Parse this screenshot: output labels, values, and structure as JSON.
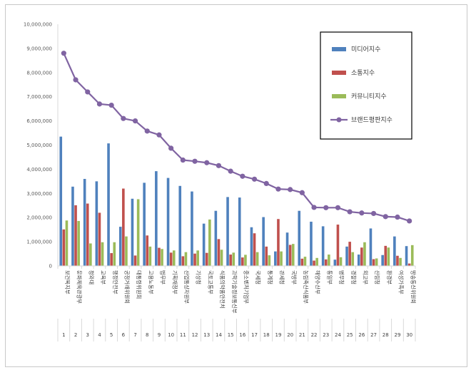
{
  "chart_data": {
    "type": "bar",
    "title": "",
    "xlabel": "",
    "ylabel": "",
    "ylim": [
      0,
      10000000
    ],
    "yticks": [
      "0",
      "1,000,000",
      "2,000,000",
      "3,000,000",
      "4,000,000",
      "5,000,000",
      "6,000,000",
      "7,000,000",
      "8,000,000",
      "9,000,000",
      "10,000,000"
    ],
    "ytick_values": [
      0,
      1000000,
      2000000,
      3000000,
      4000000,
      5000000,
      6000000,
      7000000,
      8000000,
      9000000,
      10000000
    ],
    "categories": [
      "보건복지부",
      "문화체육관광부",
      "청와대",
      "교육부",
      "행정안전부",
      "공정거래위원회",
      "대통령위원회",
      "고용노동부",
      "법무부",
      "기획재정부",
      "산업통상자원부",
      "기상청",
      "국토교통부",
      "식품의약품안전처",
      "과학기술정보통신부",
      "중소벤처기업부",
      "국세청",
      "통계청",
      "관세청",
      "국방부",
      "농림축산식품부",
      "해양수산부",
      "통일부",
      "병무청",
      "경찰청",
      "외교부",
      "산림청",
      "환경부",
      "여성가족부",
      "방송통신위원회"
    ],
    "ranks": [
      "1",
      "2",
      "3",
      "4",
      "5",
      "6",
      "7",
      "8",
      "9",
      "10",
      "11",
      "12",
      "13",
      "14",
      "15",
      "16",
      "17",
      "18",
      "19",
      "20",
      "21",
      "22",
      "23",
      "24",
      "25",
      "26",
      "27",
      "28",
      "29",
      "30"
    ],
    "series": [
      {
        "name": "미디어지수",
        "color": "#4f81bd",
        "kind": "bar",
        "values": [
          5350000,
          3280000,
          3600000,
          3500000,
          5070000,
          1620000,
          2780000,
          3440000,
          3920000,
          3640000,
          3310000,
          3080000,
          1750000,
          2280000,
          2850000,
          2830000,
          1600000,
          2020000,
          600000,
          1380000,
          2280000,
          1830000,
          1640000,
          260000,
          800000,
          470000,
          1550000,
          450000,
          1220000,
          820000
        ]
      },
      {
        "name": "소통지수",
        "color": "#c0504d",
        "kind": "bar",
        "values": [
          1510000,
          2510000,
          2580000,
          2200000,
          530000,
          3200000,
          430000,
          1260000,
          750000,
          550000,
          400000,
          510000,
          540000,
          1110000,
          470000,
          350000,
          1350000,
          800000,
          1940000,
          870000,
          300000,
          220000,
          270000,
          1710000,
          1000000,
          760000,
          280000,
          830000,
          420000,
          100000
        ]
      },
      {
        "name": "커뮤니티지수",
        "color": "#9bbb59",
        "kind": "bar",
        "values": [
          1880000,
          1860000,
          930000,
          980000,
          980000,
          1220000,
          2760000,
          800000,
          700000,
          640000,
          570000,
          640000,
          1920000,
          670000,
          550000,
          460000,
          570000,
          440000,
          600000,
          910000,
          380000,
          330000,
          470000,
          360000,
          570000,
          980000,
          310000,
          760000,
          330000,
          860000
        ]
      },
      {
        "name": "브랜드평판지수",
        "color": "#8064a2",
        "kind": "line",
        "values": [
          8800000,
          7700000,
          7200000,
          6700000,
          6650000,
          6100000,
          6000000,
          5580000,
          5420000,
          4870000,
          4380000,
          4330000,
          4270000,
          4150000,
          3920000,
          3710000,
          3590000,
          3410000,
          3180000,
          3160000,
          3030000,
          2420000,
          2410000,
          2410000,
          2240000,
          2190000,
          2170000,
          2040000,
          2020000,
          1860000
        ]
      }
    ],
    "legend_position": "top-right",
    "grid": false
  }
}
